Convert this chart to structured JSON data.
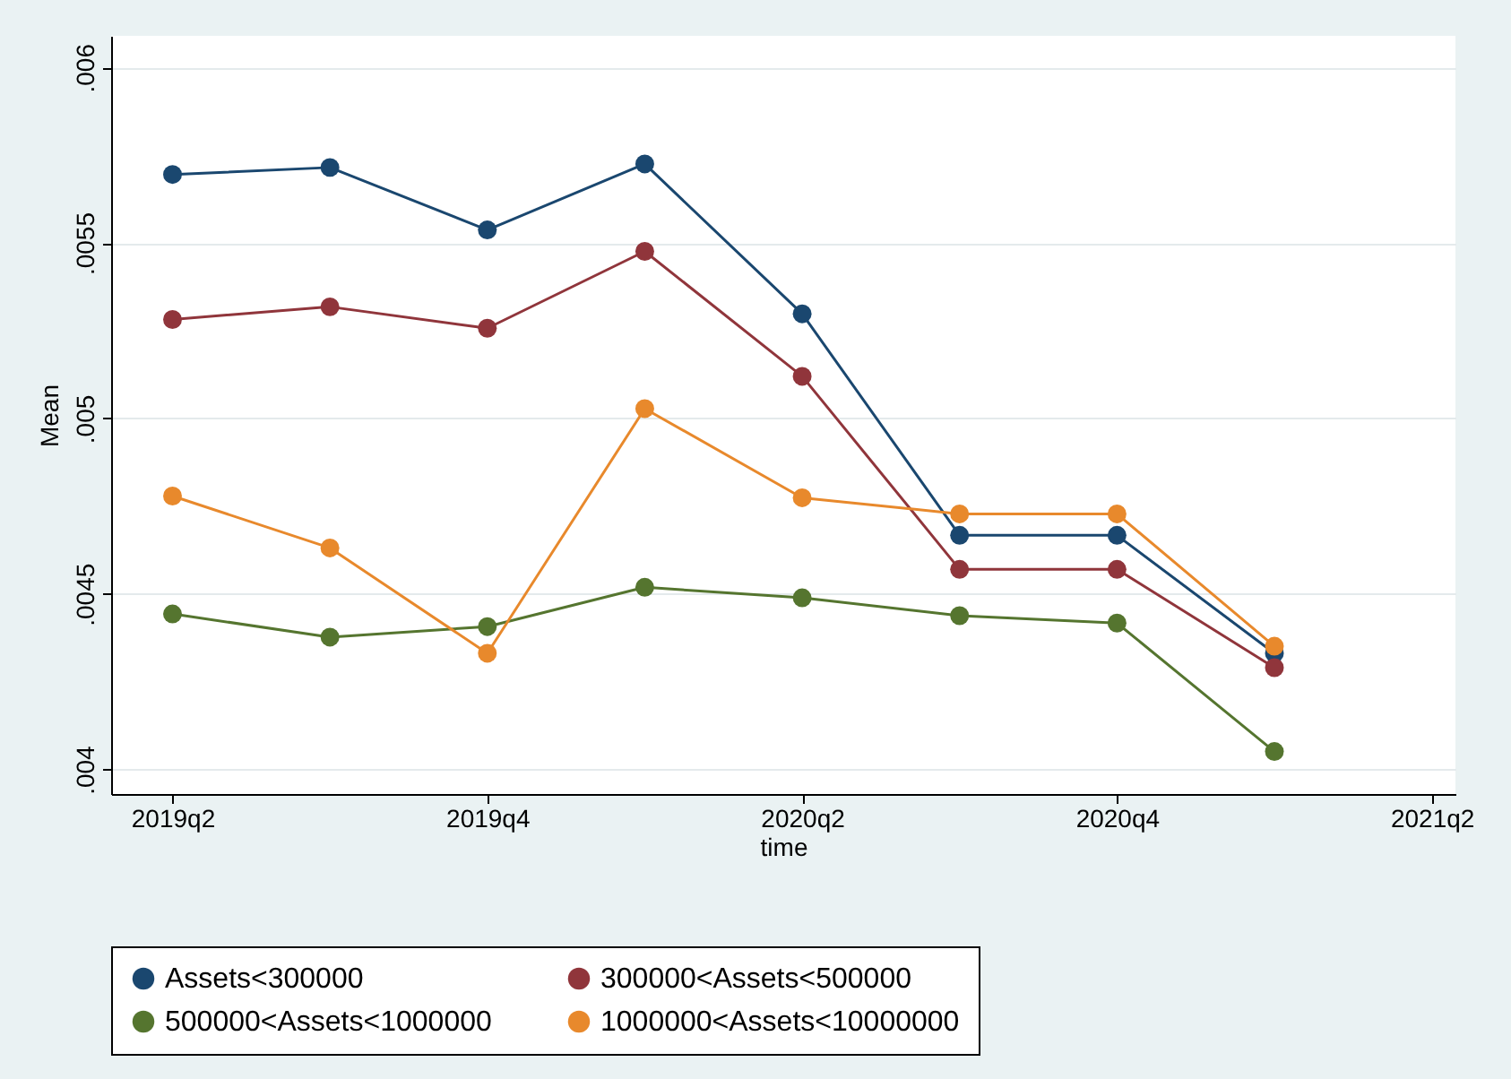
{
  "chart_data": {
    "type": "line",
    "xlabel": "time",
    "ylabel": "Mean",
    "categories": [
      "2019q2",
      null,
      "2019q4",
      null,
      "2020q2",
      null,
      "2020q4",
      null,
      "2021q2"
    ],
    "ylim": [
      0.00393,
      0.00609
    ],
    "yticks": [
      {
        "value": 0.004,
        "label": ".004"
      },
      {
        "value": 0.0045,
        "label": ".0045"
      },
      {
        "value": 0.005,
        "label": ".005"
      },
      {
        "value": 0.0055,
        "label": ".0055"
      },
      {
        "value": 0.006,
        "label": ".006"
      }
    ],
    "grid": "y",
    "legend": "bottom",
    "marker": "circle",
    "line_style": "solid",
    "series": [
      {
        "name": "Assets<300000",
        "color": "#1a476f",
        "values": [
          0.005695,
          0.005715,
          0.005537,
          0.005725,
          0.005298,
          0.004667,
          0.004667,
          0.004331,
          null
        ]
      },
      {
        "name": "300000<Assets<500000",
        "color": "#90353b",
        "values": [
          0.005282,
          0.005318,
          0.005257,
          0.005476,
          0.00512,
          0.00457,
          0.00457,
          0.00429,
          null
        ]
      },
      {
        "name": "500000<Assets<1000000",
        "color": "#55752f",
        "values": [
          0.004443,
          0.004377,
          0.004407,
          0.004519,
          0.004489,
          0.004438,
          0.004417,
          0.004051,
          null
        ]
      },
      {
        "name": "1000000<Assets<10000000",
        "color": "#e8892c",
        "values": [
          0.004779,
          0.004631,
          0.004331,
          0.005028,
          0.004774,
          0.004728,
          0.004728,
          0.004351,
          null
        ]
      }
    ]
  }
}
